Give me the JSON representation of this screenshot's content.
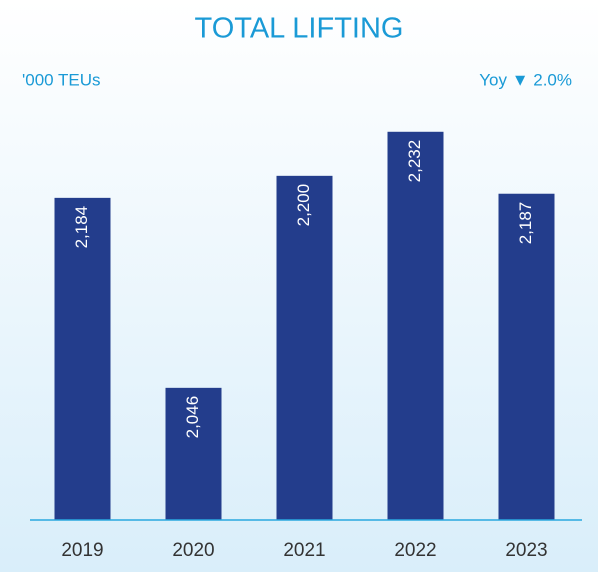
{
  "chart_data": {
    "type": "bar",
    "title": "TOTAL LIFTING",
    "unit_label": "'000 TEUs",
    "annotation": "Yoy ▼ 2.0%",
    "categories": [
      "2019",
      "2020",
      "2021",
      "2022",
      "2023"
    ],
    "values": [
      2184,
      2046,
      2200,
      2232,
      2187
    ],
    "value_labels": [
      "2,184",
      "2,046",
      "2,200",
      "2,232",
      "2,187"
    ],
    "color": "#233d8c",
    "ylim": [
      1950,
      2250
    ]
  }
}
